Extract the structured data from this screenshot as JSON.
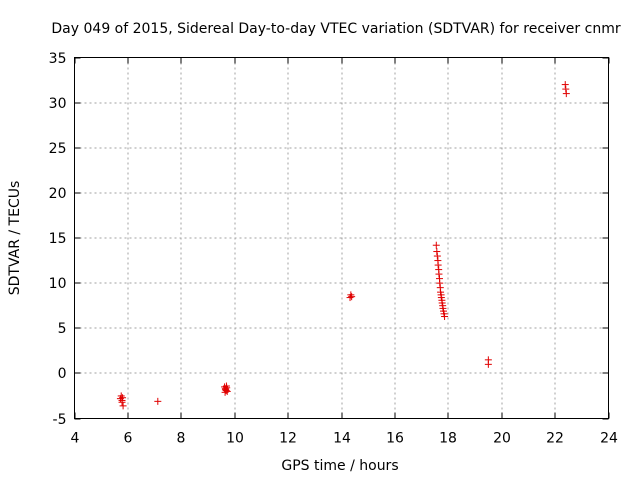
{
  "chart_data": {
    "type": "scatter",
    "title": "Day 049 of 2015, Sidereal Day-to-day VTEC variation (SDTVAR) for receiver cnmr",
    "xlabel": "GPS time / hours",
    "ylabel": "SDTVAR / TECUs",
    "xlim": [
      4,
      24
    ],
    "ylim": [
      -5,
      35
    ],
    "xticks": [
      4,
      6,
      8,
      10,
      12,
      14,
      16,
      18,
      20,
      22,
      24
    ],
    "yticks": [
      -5,
      0,
      5,
      10,
      15,
      20,
      25,
      30,
      35
    ],
    "xtick_labels": [
      "4",
      "6",
      "8",
      "10",
      "12",
      "14",
      "16",
      "18",
      "20",
      "22",
      "24"
    ],
    "ytick_labels": [
      "-5",
      "0",
      "5",
      "10",
      "15",
      "20",
      "25",
      "30",
      "35"
    ],
    "grid": true,
    "marker": "+",
    "color": "#e00000",
    "series": [
      {
        "name": "SDTVAR",
        "x": [
          5.72,
          5.75,
          5.78,
          5.8,
          5.82,
          5.78,
          7.12,
          9.62,
          9.65,
          9.68,
          9.7,
          9.72,
          9.66,
          9.69,
          9.64,
          14.32,
          14.35,
          14.38,
          17.55,
          17.57,
          17.59,
          17.61,
          17.62,
          17.64,
          17.65,
          17.67,
          17.68,
          17.7,
          17.71,
          17.73,
          17.74,
          17.76,
          17.77,
          17.79,
          17.8,
          17.82,
          17.84,
          17.86,
          19.5,
          19.5,
          22.38,
          22.4,
          22.42
        ],
        "y": [
          -2.8,
          -2.5,
          -3.0,
          -2.7,
          -3.6,
          -3.2,
          -3.1,
          -1.5,
          -1.7,
          -1.9,
          -1.6,
          -2.0,
          -1.8,
          -1.4,
          -2.1,
          8.4,
          8.7,
          8.5,
          14.2,
          13.5,
          13.0,
          12.5,
          12.0,
          11.5,
          11.0,
          10.5,
          10.0,
          9.5,
          9.0,
          8.7,
          8.4,
          8.1,
          7.8,
          7.5,
          7.2,
          6.9,
          6.6,
          6.3,
          1.5,
          1.0,
          32.0,
          31.5,
          31.0
        ]
      }
    ]
  }
}
